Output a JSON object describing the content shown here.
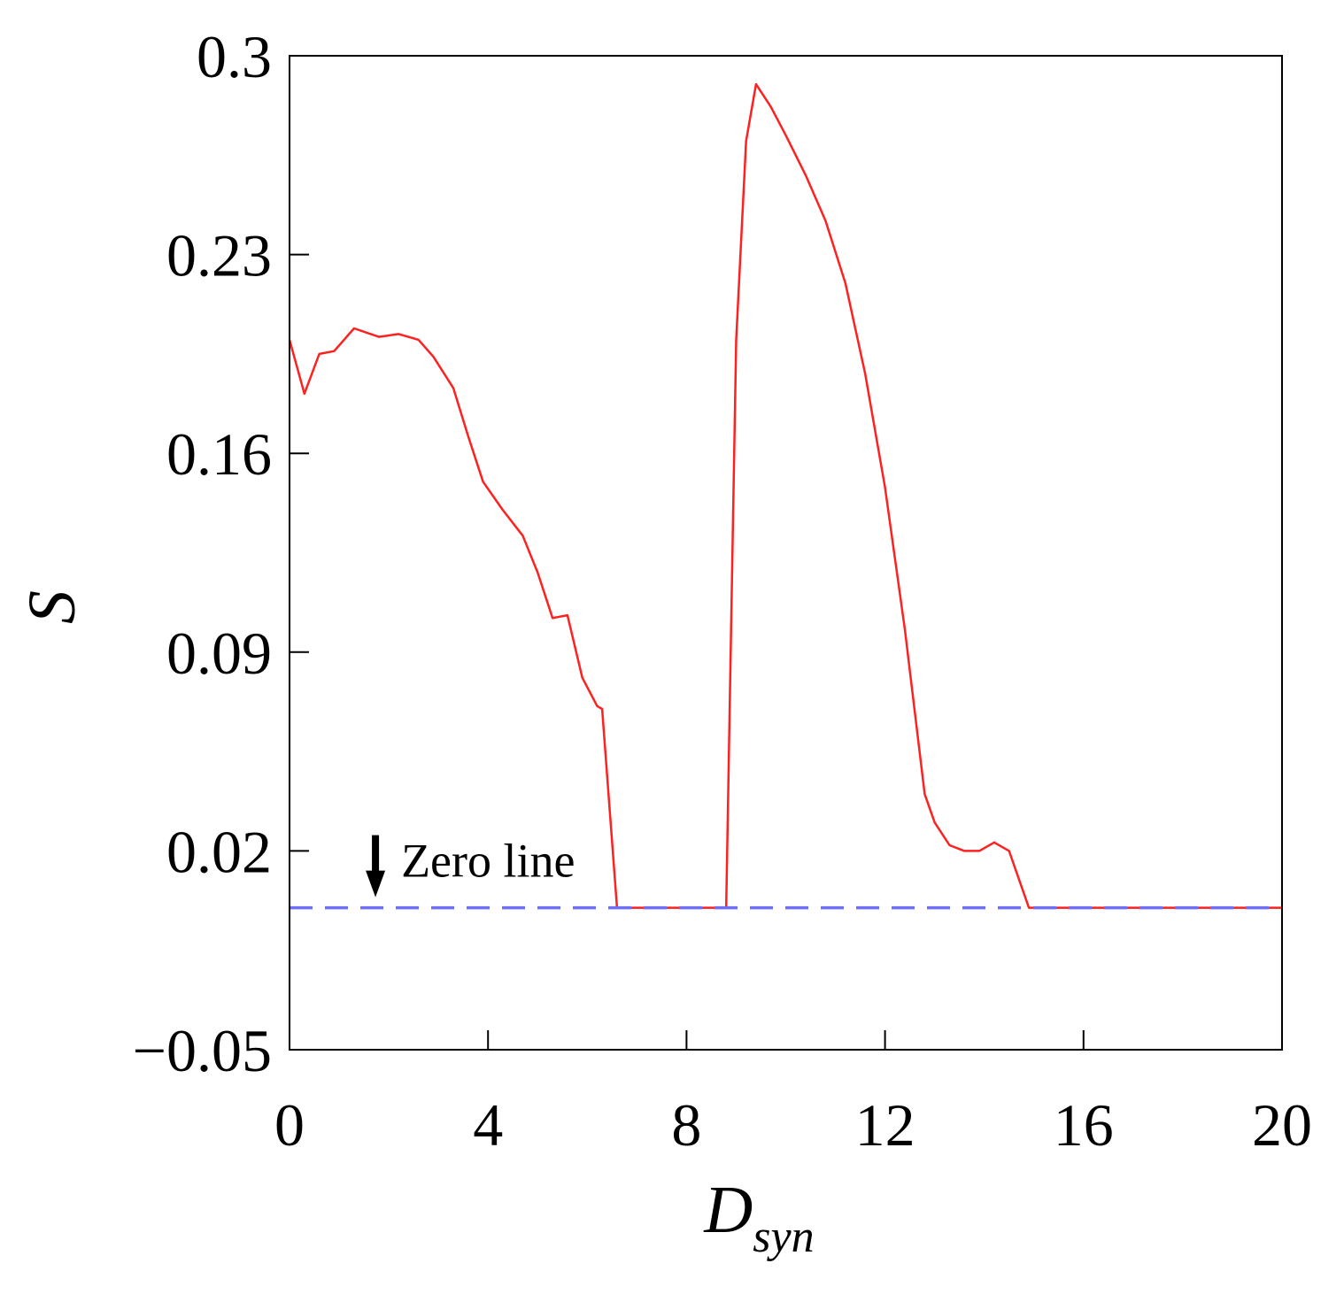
{
  "chart_data": {
    "type": "line",
    "xlabel": {
      "main": "D",
      "sub": "syn"
    },
    "ylabel": "S",
    "xlim": [
      0,
      20
    ],
    "ylim": [
      -0.05,
      0.3
    ],
    "xticks": [
      0,
      4,
      8,
      12,
      16,
      20
    ],
    "xtick_labels": [
      "0",
      "4",
      "8",
      "12",
      "16",
      "20"
    ],
    "yticks": [
      -0.05,
      0.02,
      0.09,
      0.16,
      0.23,
      0.3
    ],
    "ytick_labels": [
      "−0.05",
      "0.02",
      "0.09",
      "0.16",
      "0.23",
      "0.3"
    ],
    "grid": false,
    "series": [
      {
        "color": "#ff2020",
        "style": "solid",
        "x": [
          0,
          0.3,
          0.6,
          0.9,
          1.3,
          1.8,
          2.2,
          2.6,
          2.9,
          3.3,
          3.6,
          3.9,
          4.3,
          4.7,
          5.0,
          5.3,
          5.6,
          5.9,
          6.2,
          6.3,
          6.6,
          7.0,
          7.5,
          8.0,
          8.5,
          8.8,
          9.0,
          9.2,
          9.4,
          9.7,
          10.0,
          10.4,
          10.8,
          11.2,
          11.6,
          12.0,
          12.4,
          12.8,
          13.0,
          13.3,
          13.6,
          13.9,
          14.2,
          14.5,
          14.9,
          16.0,
          18.0,
          20.0
        ],
        "y": [
          0.2,
          0.181,
          0.195,
          0.196,
          0.204,
          0.201,
          0.202,
          0.2,
          0.194,
          0.183,
          0.166,
          0.15,
          0.14,
          0.131,
          0.118,
          0.102,
          0.103,
          0.081,
          0.071,
          0.07,
          0.0,
          0.0,
          0.0,
          0.0,
          0.0,
          0.0,
          0.2,
          0.27,
          0.29,
          0.282,
          0.272,
          0.258,
          0.242,
          0.22,
          0.188,
          0.148,
          0.098,
          0.04,
          0.03,
          0.022,
          0.02,
          0.02,
          0.023,
          0.02,
          0.0,
          0.0,
          0.0,
          0.0
        ]
      },
      {
        "color": "#6f6ff7",
        "style": "dashed",
        "x": [
          0,
          20
        ],
        "y": [
          0,
          0
        ]
      }
    ],
    "annotation": {
      "text": "Zero line",
      "arrow": "down",
      "x": 1.5,
      "y": 0.0
    }
  }
}
